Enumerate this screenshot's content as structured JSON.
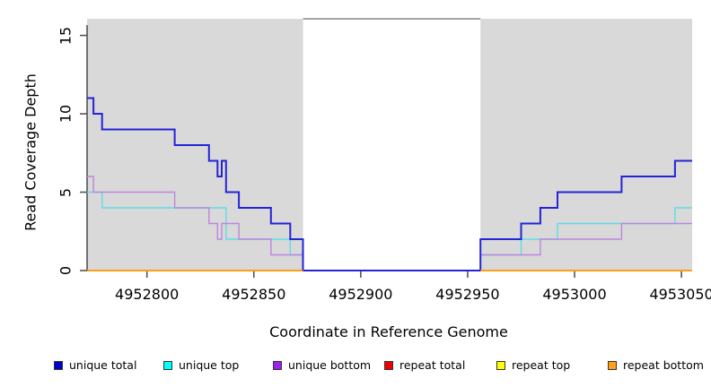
{
  "chart": {
    "xlabel": "Coordinate in Reference Genome",
    "ylabel": "Read Coverage Depth"
  },
  "chart_data": {
    "type": "line",
    "subtype": "step-coverage",
    "title": "",
    "xlabel": "Coordinate in Reference Genome",
    "ylabel": "Read Coverage Depth",
    "xlim": [
      4952772,
      4953055
    ],
    "ylim": [
      0,
      16.06
    ],
    "x_ticks": [
      4952800,
      4952850,
      4952900,
      4952950,
      4953000,
      4953050
    ],
    "y_ticks": [
      0,
      5,
      10,
      15
    ],
    "grid": false,
    "legend_position": "bottom",
    "shaded_regions": {
      "color": "#d9d9d9",
      "regions": [
        [
          4952772,
          4952873
        ],
        [
          4952956,
          4953055
        ]
      ]
    },
    "gap_top_border": {
      "region": [
        4952873,
        4952956
      ],
      "color": "#8f8f8f"
    },
    "series": [
      {
        "name": "unique total",
        "color": "#2424d6",
        "width": 2,
        "z": 5,
        "regions_only": false,
        "points": [
          [
            4952772,
            11
          ],
          [
            4952775,
            10
          ],
          [
            4952779,
            9
          ],
          [
            4952813,
            8
          ],
          [
            4952829,
            7
          ],
          [
            4952833,
            6
          ],
          [
            4952835,
            7
          ],
          [
            4952837,
            5
          ],
          [
            4952843,
            4
          ],
          [
            4952858,
            3
          ],
          [
            4952867,
            2
          ],
          [
            4952873,
            0
          ],
          [
            4952956,
            2
          ],
          [
            4952975,
            3
          ],
          [
            4952984,
            4
          ],
          [
            4952992,
            5
          ],
          [
            4953022,
            6
          ],
          [
            4953047,
            7
          ],
          [
            4953055,
            7
          ]
        ]
      },
      {
        "name": "unique top",
        "color": "#5cdde6",
        "width": 1.4,
        "z": 3,
        "regions_only": false,
        "points": [
          [
            4952772,
            5
          ],
          [
            4952779,
            4
          ],
          [
            4952837,
            2
          ],
          [
            4952867,
            1
          ],
          [
            4952873,
            0
          ],
          [
            4952956,
            1
          ],
          [
            4952975,
            2
          ],
          [
            4952992,
            3
          ],
          [
            4953047,
            4
          ],
          [
            4953055,
            4
          ]
        ]
      },
      {
        "name": "unique bottom",
        "color": "#bd85e0",
        "width": 1.4,
        "z": 4,
        "regions_only": false,
        "points": [
          [
            4952772,
            6
          ],
          [
            4952775,
            5
          ],
          [
            4952813,
            4
          ],
          [
            4952829,
            3
          ],
          [
            4952833,
            2
          ],
          [
            4952835,
            3
          ],
          [
            4952843,
            2
          ],
          [
            4952858,
            1
          ],
          [
            4952873,
            0
          ],
          [
            4952956,
            1
          ],
          [
            4952984,
            2
          ],
          [
            4953022,
            3
          ],
          [
            4953055,
            3
          ]
        ]
      },
      {
        "name": "repeat total",
        "color": "#dd0000",
        "width": 1.4,
        "z": 1,
        "regions_only": true,
        "points": [
          [
            4952772,
            0
          ],
          [
            4953055,
            0
          ]
        ]
      },
      {
        "name": "repeat top",
        "color": "#ffff00",
        "width": 1.4,
        "z": 2,
        "regions_only": true,
        "points": [
          [
            4952772,
            0
          ],
          [
            4953055,
            0
          ]
        ]
      },
      {
        "name": "repeat bottom",
        "color": "#ff9a14",
        "width": 1.8,
        "z": 6,
        "regions_only": true,
        "points": [
          [
            4952772,
            0
          ],
          [
            4953055,
            0
          ]
        ]
      }
    ]
  },
  "legend": {
    "items": [
      {
        "label": "unique total",
        "color": "#0000cd"
      },
      {
        "label": "unique top",
        "color": "#00ffff"
      },
      {
        "label": "unique bottom",
        "color": "#a020f0"
      },
      {
        "label": "repeat total",
        "color": "#ee0000"
      },
      {
        "label": "repeat top",
        "color": "#ffff00"
      },
      {
        "label": "repeat bottom",
        "color": "#ffa019"
      }
    ]
  }
}
